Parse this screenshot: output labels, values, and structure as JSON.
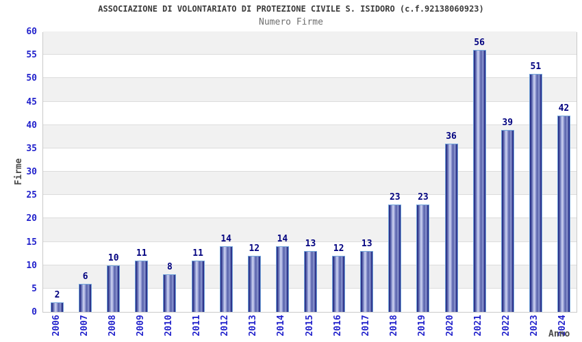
{
  "header": {
    "title": "ASSOCIAZIONE DI VOLONTARIATO DI PROTEZIONE CIVILE S. ISIDORO (c.f.92138060923)",
    "subtitle": "Numero Firme"
  },
  "chart_data": {
    "type": "bar",
    "title": "Numero Firme",
    "categories": [
      "2006",
      "2007",
      "2008",
      "2009",
      "2010",
      "2011",
      "2012",
      "2013",
      "2014",
      "2015",
      "2016",
      "2017",
      "2018",
      "2019",
      "2020",
      "2021",
      "2022",
      "2023",
      "2024"
    ],
    "values": [
      2,
      6,
      10,
      11,
      8,
      11,
      14,
      12,
      14,
      13,
      12,
      13,
      23,
      23,
      36,
      56,
      39,
      51,
      42
    ],
    "xlabel": "Anno",
    "ylabel": "Firme",
    "ylim": [
      0,
      60
    ],
    "ytick_step": 5,
    "grid": "horizontal-bands-alternating",
    "legend_position": "none",
    "value_labels": "above-bars"
  },
  "colors": {
    "title": "#3b3b3b",
    "subtitle": "#6e6e6e",
    "tick_label_blue": "#2323cc",
    "value_label_navy": "#00007f",
    "bar_border_lightblue": "#74a7dc",
    "bar_gradient_dark": "#1f2180",
    "bar_gradient_light": "#d0d5f2",
    "band_gray": "#f1f1f1",
    "band_white": "#ffffff",
    "grid_line": "#dcdcdc",
    "plot_border": "#c9c9c9",
    "axis_title_gray": "#4a4a4a"
  }
}
